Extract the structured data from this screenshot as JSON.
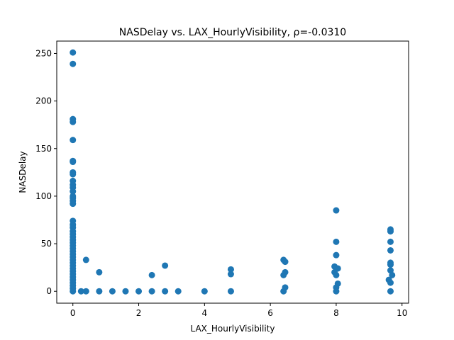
{
  "chart_data": {
    "type": "scatter",
    "title": "NASDelay vs. LAX_HourlyVisibility, ρ=-0.0310",
    "xlabel": "LAX_HourlyVisibility",
    "ylabel": "NASDelay",
    "xlim": [
      -0.49,
      10.2
    ],
    "ylim": [
      -12.5,
      263
    ],
    "xticks": [
      0,
      2,
      4,
      6,
      8,
      10
    ],
    "xtick_labels": [
      "0",
      "2",
      "4",
      "6",
      "8",
      "10"
    ],
    "yticks": [
      0,
      50,
      100,
      150,
      200,
      250
    ],
    "ytick_labels": [
      "0",
      "50",
      "100",
      "150",
      "200",
      "250"
    ],
    "grid": false,
    "legend": false,
    "marker_color": "#1f77b4",
    "series": [
      {
        "points": [
          [
            0,
            251
          ],
          [
            0,
            239
          ],
          [
            0,
            181
          ],
          [
            0,
            178
          ],
          [
            0,
            159
          ],
          [
            0,
            137
          ],
          [
            0,
            136
          ],
          [
            0,
            125
          ],
          [
            0,
            123
          ],
          [
            0,
            116
          ],
          [
            0,
            112
          ],
          [
            0,
            109
          ],
          [
            0,
            105
          ],
          [
            0,
            100
          ],
          [
            0,
            98
          ],
          [
            0,
            95
          ],
          [
            0,
            92
          ],
          [
            0,
            74
          ],
          [
            0,
            70
          ],
          [
            0,
            67
          ],
          [
            0,
            63
          ],
          [
            0,
            60
          ],
          [
            0,
            57
          ],
          [
            0,
            54
          ],
          [
            0,
            51
          ],
          [
            0,
            48
          ],
          [
            0,
            45
          ],
          [
            0,
            42
          ],
          [
            0,
            39
          ],
          [
            0,
            36
          ],
          [
            0,
            33
          ],
          [
            0,
            30
          ],
          [
            0,
            27
          ],
          [
            0,
            24
          ],
          [
            0,
            21
          ],
          [
            0,
            18
          ],
          [
            0,
            15
          ],
          [
            0,
            12
          ],
          [
            0,
            9
          ],
          [
            0,
            6
          ],
          [
            0,
            3
          ],
          [
            0,
            0
          ],
          [
            0.25,
            0
          ],
          [
            0.4,
            33
          ],
          [
            0.4,
            0
          ],
          [
            0.8,
            20
          ],
          [
            0.8,
            0
          ],
          [
            1.2,
            0
          ],
          [
            1.6,
            0
          ],
          [
            2.0,
            0
          ],
          [
            2.4,
            17
          ],
          [
            2.4,
            0
          ],
          [
            2.8,
            27
          ],
          [
            2.8,
            0
          ],
          [
            3.2,
            0
          ],
          [
            4.0,
            0
          ],
          [
            4.8,
            23
          ],
          [
            4.8,
            18
          ],
          [
            4.8,
            0
          ],
          [
            6.4,
            33
          ],
          [
            6.45,
            31
          ],
          [
            6.45,
            20
          ],
          [
            6.4,
            17
          ],
          [
            6.45,
            4
          ],
          [
            6.4,
            0
          ],
          [
            8.0,
            85
          ],
          [
            8.0,
            52
          ],
          [
            8.0,
            38
          ],
          [
            7.95,
            26
          ],
          [
            8.05,
            24
          ],
          [
            7.95,
            20
          ],
          [
            8.0,
            17
          ],
          [
            8.05,
            8
          ],
          [
            8.0,
            4
          ],
          [
            8.0,
            0
          ],
          [
            9.65,
            65
          ],
          [
            9.65,
            63
          ],
          [
            9.65,
            52
          ],
          [
            9.65,
            43
          ],
          [
            9.65,
            30
          ],
          [
            9.65,
            28
          ],
          [
            9.65,
            22
          ],
          [
            9.7,
            17
          ],
          [
            9.6,
            12
          ],
          [
            9.65,
            9
          ],
          [
            9.65,
            0
          ]
        ]
      }
    ]
  }
}
